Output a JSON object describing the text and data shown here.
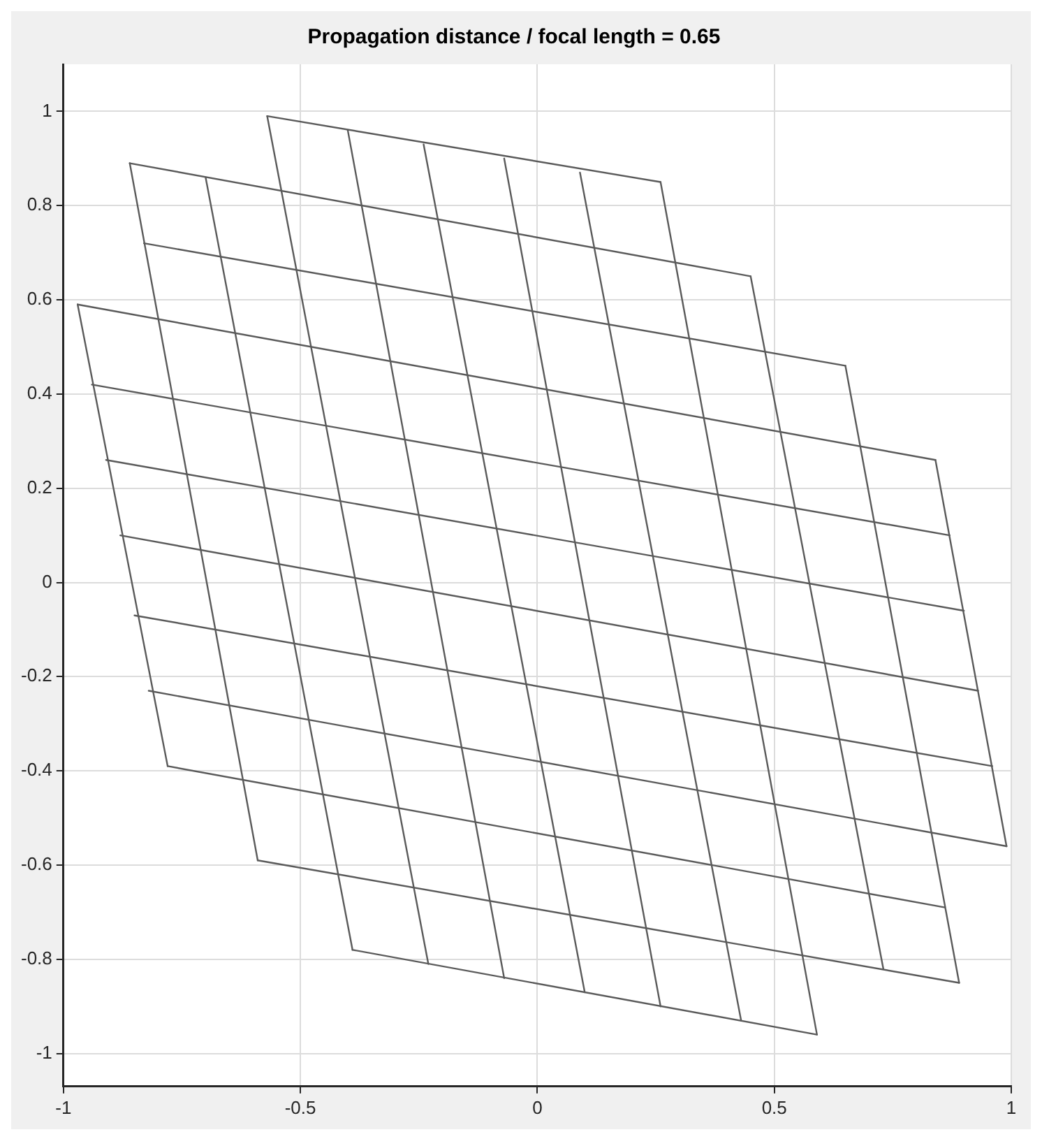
{
  "chart_data": {
    "type": "line",
    "title": "Propagation distance / focal length = 0.65",
    "xlim": [
      -1,
      1
    ],
    "xticks": [
      -1,
      -0.5,
      0,
      0.5,
      1
    ],
    "ylim": [
      -1.07,
      1.1
    ],
    "yticks": [
      -1,
      -0.8,
      -0.6,
      -0.4,
      -0.2,
      0,
      0.2,
      0.4,
      0.6,
      0.8,
      1
    ],
    "grid": true,
    "marker": "none",
    "line_style": "solid",
    "series": [
      {
        "type": "line",
        "color": "#5a5a5a",
        "x": [
          -0.57,
          0.26
        ],
        "values": [
          0.99,
          0.85
        ]
      },
      {
        "type": "line",
        "color": "#5a5a5a",
        "x": [
          -0.86,
          0.45
        ],
        "values": [
          0.89,
          0.65
        ]
      },
      {
        "type": "line",
        "color": "#5a5a5a",
        "x": [
          -0.83,
          0.65
        ],
        "values": [
          0.72,
          0.46
        ]
      },
      {
        "type": "line",
        "color": "#5a5a5a",
        "x": [
          -0.97,
          0.84
        ],
        "values": [
          0.59,
          0.26
        ]
      },
      {
        "type": "line",
        "color": "#5a5a5a",
        "x": [
          -0.94,
          0.87
        ],
        "values": [
          0.42,
          0.1
        ]
      },
      {
        "type": "line",
        "color": "#5a5a5a",
        "x": [
          -0.91,
          0.9
        ],
        "values": [
          0.26,
          -0.06
        ]
      },
      {
        "type": "line",
        "color": "#5a5a5a",
        "x": [
          -0.88,
          0.93
        ],
        "values": [
          0.1,
          -0.23
        ]
      },
      {
        "type": "line",
        "color": "#5a5a5a",
        "x": [
          -0.85,
          0.96
        ],
        "values": [
          -0.07,
          -0.39
        ]
      },
      {
        "type": "line",
        "color": "#5a5a5a",
        "x": [
          -0.82,
          0.99
        ],
        "values": [
          -0.23,
          -0.56
        ]
      },
      {
        "type": "line",
        "color": "#5a5a5a",
        "x": [
          -0.78,
          0.86
        ],
        "values": [
          -0.39,
          -0.69
        ]
      },
      {
        "type": "line",
        "color": "#5a5a5a",
        "x": [
          -0.59,
          0.89
        ],
        "values": [
          -0.59,
          -0.85
        ]
      },
      {
        "type": "line",
        "color": "#5a5a5a",
        "x": [
          -0.39,
          0.59
        ],
        "values": [
          -0.78,
          -0.96
        ]
      },
      {
        "type": "line",
        "color": "#5a5a5a",
        "x": [
          -0.97,
          -0.78
        ],
        "values": [
          0.59,
          -0.39
        ]
      },
      {
        "type": "line",
        "color": "#5a5a5a",
        "x": [
          -0.86,
          -0.59
        ],
        "values": [
          0.89,
          -0.59
        ]
      },
      {
        "type": "line",
        "color": "#5a5a5a",
        "x": [
          -0.7,
          -0.39
        ],
        "values": [
          0.86,
          -0.78
        ]
      },
      {
        "type": "line",
        "color": "#5a5a5a",
        "x": [
          -0.57,
          -0.23
        ],
        "values": [
          0.99,
          -0.81
        ]
      },
      {
        "type": "line",
        "color": "#5a5a5a",
        "x": [
          -0.4,
          -0.07
        ],
        "values": [
          0.96,
          -0.84
        ]
      },
      {
        "type": "line",
        "color": "#5a5a5a",
        "x": [
          -0.24,
          0.1
        ],
        "values": [
          0.93,
          -0.87
        ]
      },
      {
        "type": "line",
        "color": "#5a5a5a",
        "x": [
          -0.07,
          0.26
        ],
        "values": [
          0.9,
          -0.9
        ]
      },
      {
        "type": "line",
        "color": "#5a5a5a",
        "x": [
          0.09,
          0.43
        ],
        "values": [
          0.87,
          -0.93
        ]
      },
      {
        "type": "line",
        "color": "#5a5a5a",
        "x": [
          0.26,
          0.59
        ],
        "values": [
          0.85,
          -0.96
        ]
      },
      {
        "type": "line",
        "color": "#5a5a5a",
        "x": [
          0.45,
          0.73
        ],
        "values": [
          0.65,
          -0.82
        ]
      },
      {
        "type": "line",
        "color": "#5a5a5a",
        "x": [
          0.65,
          0.89
        ],
        "values": [
          0.46,
          -0.85
        ]
      },
      {
        "type": "line",
        "color": "#5a5a5a",
        "x": [
          0.84,
          0.99
        ],
        "values": [
          0.26,
          -0.56
        ]
      }
    ]
  }
}
